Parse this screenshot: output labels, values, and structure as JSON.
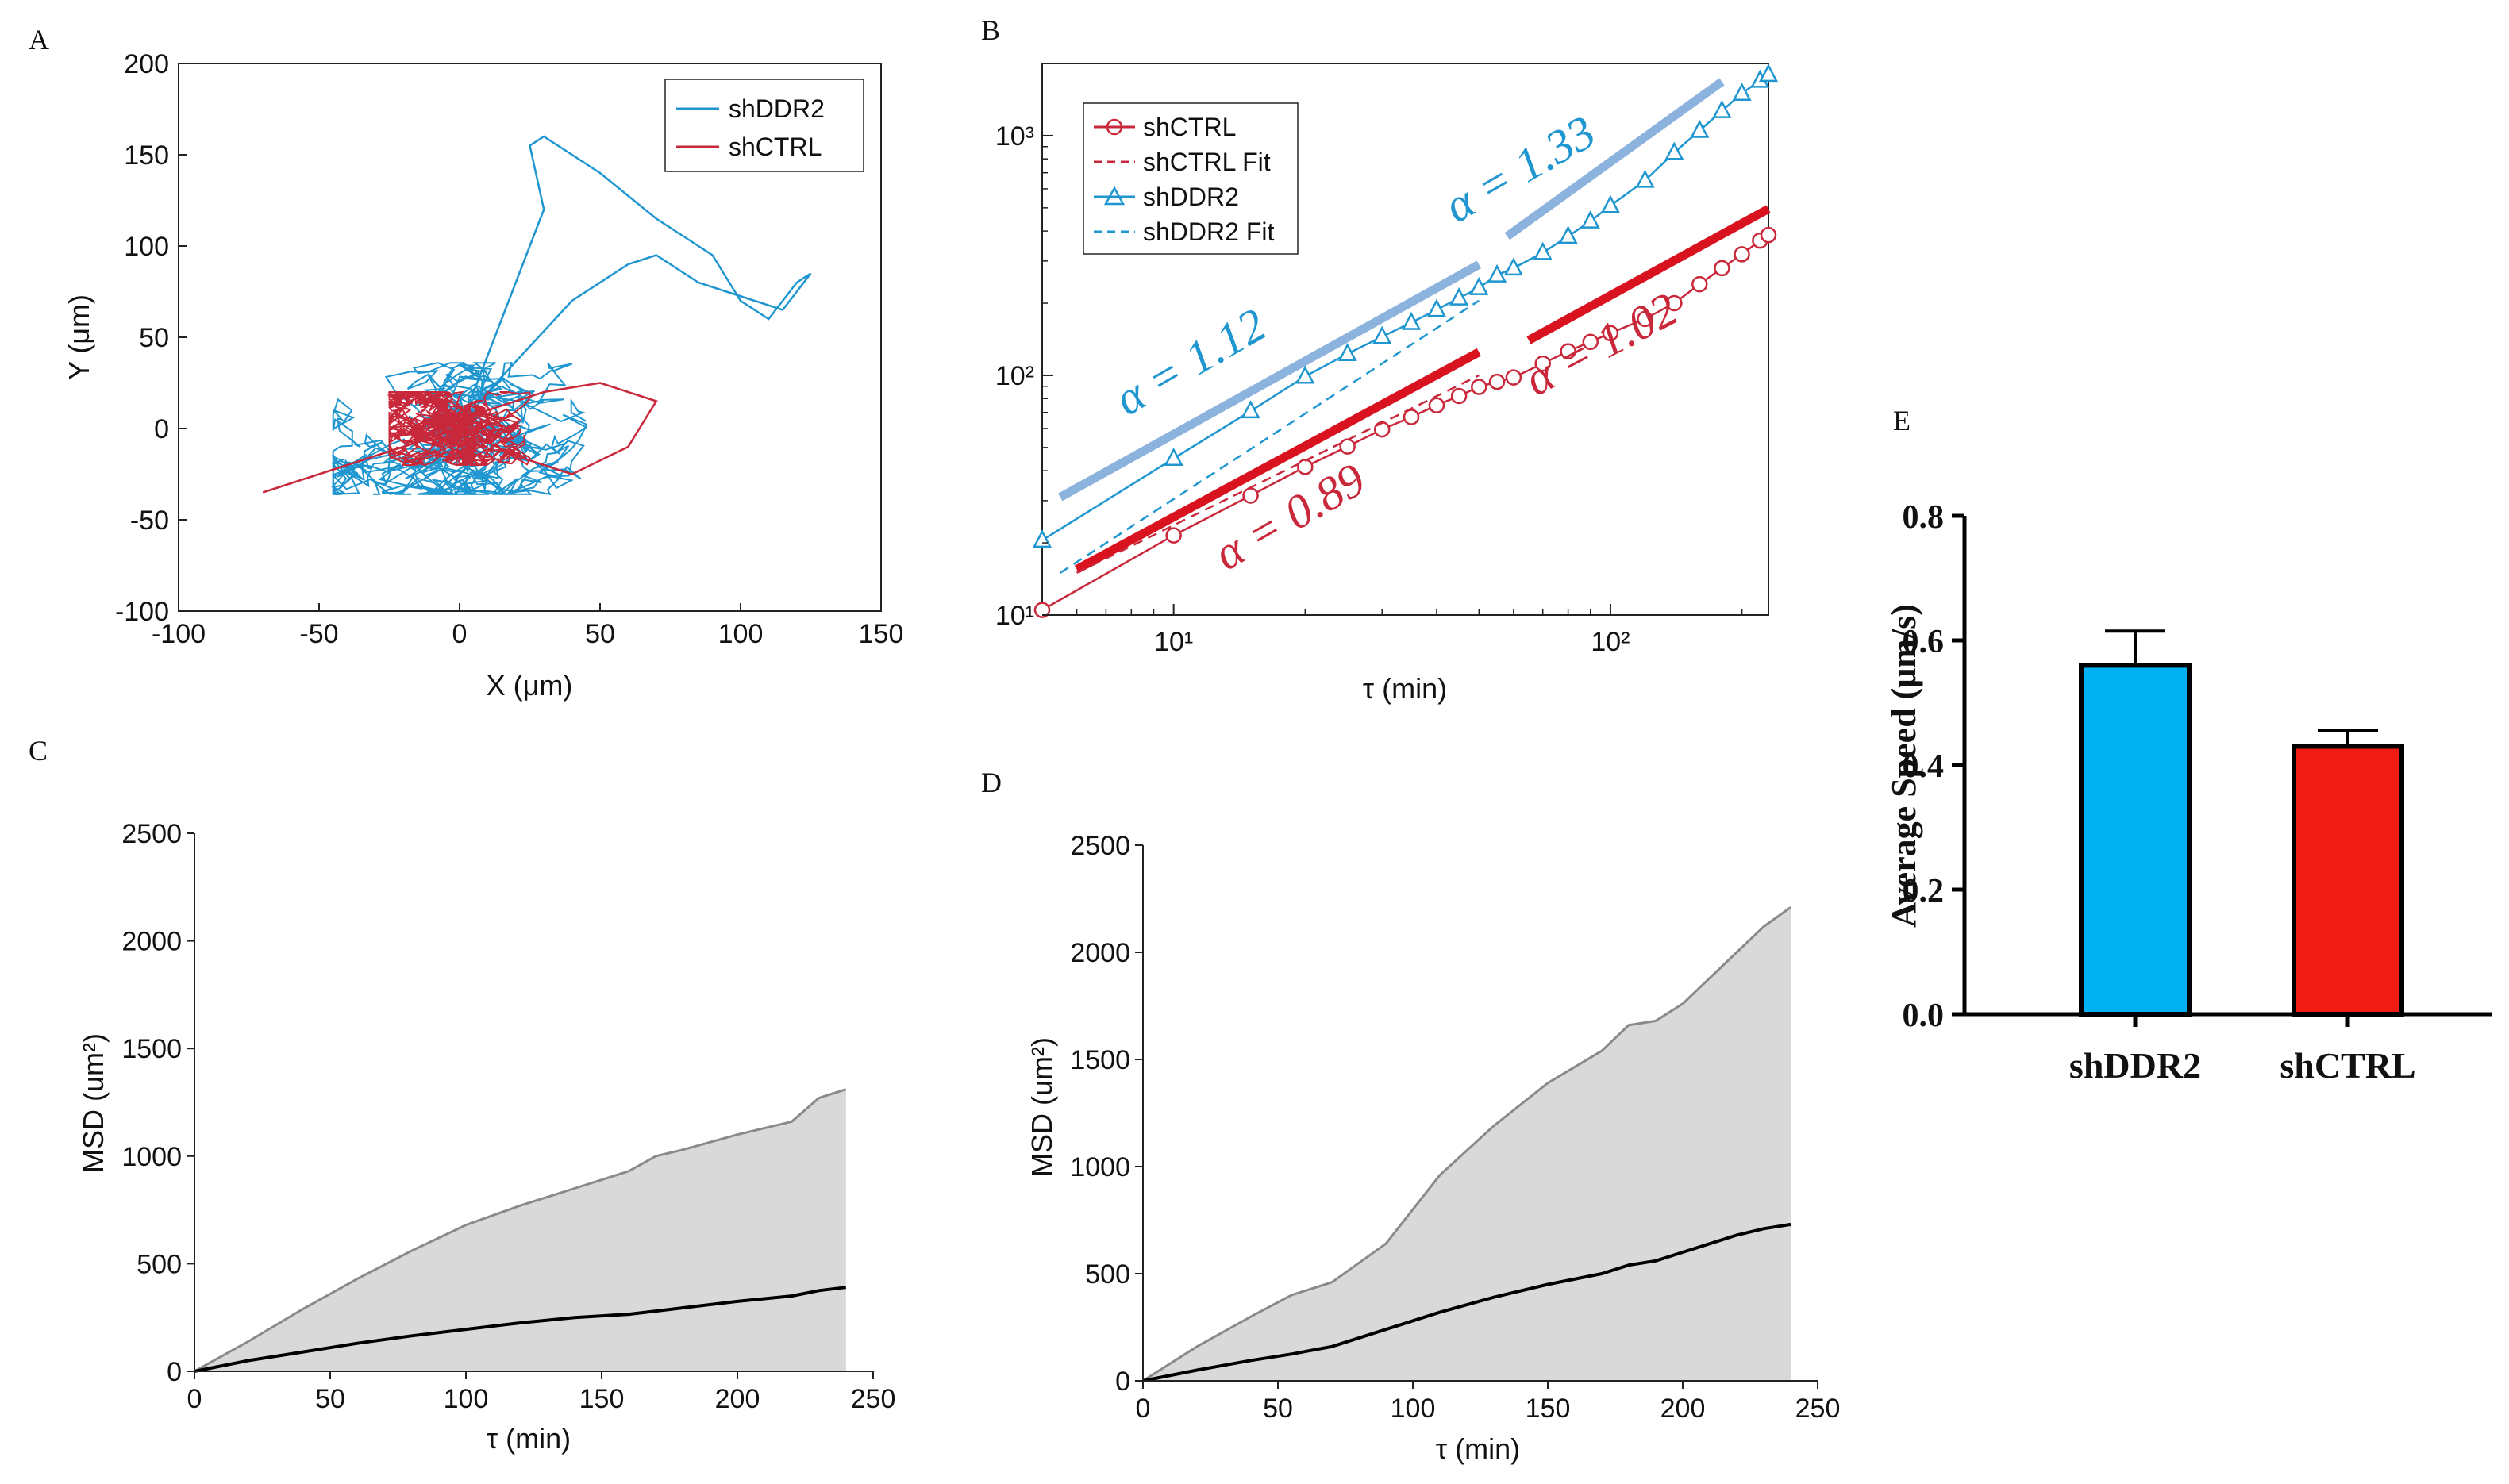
{
  "colors": {
    "shDDR2": "#1f96d0",
    "shCTRL": "#c9283a",
    "fitDDR2": "#8cb2de",
    "fitCTRL": "#d9121f",
    "barDDR2": "#00b0f0",
    "barCTRL": "#f01c14",
    "shade": "#d9d9d9"
  },
  "panels": {
    "A": {
      "letter": "A"
    },
    "B": {
      "letter": "B"
    },
    "C": {
      "letter": "C"
    },
    "D": {
      "letter": "D"
    },
    "E": {
      "letter": "E"
    }
  },
  "chart_data": [
    {
      "id": "A",
      "type": "line",
      "title": "",
      "xlabel": "X (μm)",
      "ylabel": "Y (μm)",
      "xlim": [
        -100,
        150
      ],
      "ylim": [
        -100,
        200
      ],
      "xticks": [
        "-100",
        "-50",
        "0",
        "50",
        "100",
        "150"
      ],
      "yticks": [
        "-100",
        "-50",
        "0",
        "50",
        "100",
        "150",
        "200"
      ],
      "legend": [
        "shDDR2",
        "shCTRL"
      ],
      "series": [
        {
          "name": "shDDR2",
          "note": "cell trajectories, representative long track",
          "x": [
            0,
            10,
            25,
            40,
            60,
            70,
            85,
            95,
            105,
            115,
            125,
            120,
            110,
            100,
            90,
            70,
            50,
            30,
            25,
            30,
            15,
            0
          ],
          "y": [
            0,
            20,
            45,
            70,
            90,
            95,
            80,
            75,
            70,
            65,
            85,
            80,
            60,
            70,
            95,
            115,
            140,
            160,
            155,
            120,
            60,
            0
          ]
        },
        {
          "name": "shCTRL",
          "note": "cell trajectories, representative spread",
          "x": [
            0,
            -20,
            -40,
            -60,
            -70,
            -50,
            -30,
            -10,
            10,
            30,
            50,
            70,
            60,
            40,
            20,
            0
          ],
          "y": [
            0,
            -10,
            -20,
            -30,
            -35,
            -25,
            -15,
            -5,
            10,
            20,
            25,
            15,
            -10,
            -25,
            -15,
            0
          ]
        }
      ]
    },
    {
      "id": "B",
      "type": "line",
      "scale": "loglog",
      "xlabel": "τ (min)",
      "ylabel": "",
      "xlim": [
        5,
        230
      ],
      "ylim": [
        10,
        2000
      ],
      "xticks": [
        "10¹",
        "10²"
      ],
      "yticks": [
        "10¹",
        "10²",
        "10³"
      ],
      "legend": [
        "shCTRL",
        "shCTRL Fit",
        "shDDR2",
        "shDDR2 Fit"
      ],
      "series": [
        {
          "name": "shCTRL",
          "marker": "circle",
          "x": [
            5,
            10,
            15,
            20,
            25,
            30,
            35,
            40,
            45,
            50,
            55,
            60,
            70,
            80,
            90,
            100,
            120,
            140,
            160,
            180,
            200,
            220,
            230
          ],
          "y": [
            10.5,
            21.5,
            31.5,
            41.5,
            50.5,
            59.5,
            67,
            75,
            82,
            89.5,
            94,
            98,
            112,
            126,
            138,
            150,
            172,
            200,
            240,
            280,
            320,
            365,
            385
          ]
        },
        {
          "name": "shDDR2",
          "marker": "triangle",
          "x": [
            5,
            10,
            15,
            20,
            25,
            30,
            35,
            40,
            45,
            50,
            55,
            60,
            70,
            80,
            90,
            100,
            120,
            140,
            160,
            180,
            200,
            220,
            230
          ],
          "y": [
            20.5,
            45,
            71,
            99,
            123,
            145,
            166,
            188,
            210,
            232,
            262,
            280,
            325,
            380,
            440,
            510,
            650,
            850,
            1050,
            1270,
            1500,
            1700,
            1800
          ]
        },
        {
          "name": "shCTRL Fit",
          "style": "dashed",
          "x": [
            6,
            50
          ],
          "y": [
            15,
            100
          ]
        },
        {
          "name": "shDDR2 Fit",
          "style": "dashed",
          "x": [
            5.5,
            50
          ],
          "y": [
            15,
            205
          ]
        }
      ],
      "annotations": [
        {
          "text": "α = 1.12",
          "color": "#1f96d0"
        },
        {
          "text": "α = 1.33",
          "color": "#1f96d0"
        },
        {
          "text": "α = 0.89",
          "color": "#c9283a"
        },
        {
          "text": "α = 1.02",
          "color": "#c9283a"
        }
      ],
      "guide_lines": [
        {
          "name": "alpha-1.12-line",
          "x": [
            5.5,
            50
          ],
          "y": [
            31,
            290
          ]
        },
        {
          "name": "alpha-1.33-line",
          "x": [
            58,
            180
          ],
          "y": [
            380,
            1680
          ]
        },
        {
          "name": "alpha-0.89-line",
          "x": [
            6,
            50
          ],
          "y": [
            15.5,
            125
          ]
        },
        {
          "name": "alpha-1.02-line",
          "x": [
            65,
            230
          ],
          "y": [
            140,
            495
          ]
        }
      ]
    },
    {
      "id": "C",
      "type": "area",
      "xlabel": "τ (min)",
      "ylabel": "MSD (um²)",
      "xlim": [
        0,
        250
      ],
      "ylim": [
        0,
        2500
      ],
      "xticks": [
        "0",
        "50",
        "100",
        "150",
        "200",
        "250"
      ],
      "yticks": [
        "0",
        "500",
        "1000",
        "1500",
        "2000",
        "2500"
      ],
      "x": [
        0,
        20,
        40,
        60,
        80,
        100,
        120,
        140,
        160,
        170,
        180,
        200,
        220,
        230,
        240
      ],
      "upper": [
        0,
        140,
        290,
        430,
        560,
        680,
        770,
        850,
        930,
        1000,
        1030,
        1100,
        1160,
        1270,
        1310
      ],
      "mean": [
        0,
        50,
        90,
        130,
        165,
        195,
        225,
        250,
        265,
        280,
        295,
        325,
        350,
        375,
        390
      ]
    },
    {
      "id": "D",
      "type": "area",
      "xlabel": "τ (min)",
      "ylabel": "MSD (um²)",
      "xlim": [
        0,
        250
      ],
      "ylim": [
        0,
        2500
      ],
      "xticks": [
        "0",
        "50",
        "100",
        "150",
        "200",
        "250"
      ],
      "yticks": [
        "0",
        "500",
        "1000",
        "1500",
        "2000",
        "2500"
      ],
      "x": [
        0,
        20,
        40,
        55,
        70,
        90,
        110,
        130,
        150,
        170,
        180,
        190,
        200,
        210,
        220,
        230,
        240
      ],
      "upper": [
        0,
        160,
        300,
        400,
        460,
        640,
        960,
        1190,
        1390,
        1540,
        1660,
        1680,
        1760,
        1880,
        2000,
        2120,
        2210
      ],
      "mean": [
        0,
        50,
        95,
        125,
        160,
        240,
        320,
        390,
        450,
        500,
        540,
        560,
        600,
        640,
        680,
        710,
        730
      ]
    },
    {
      "id": "E",
      "type": "bar",
      "xlabel": "",
      "ylabel": "Average Speed (μm/s)",
      "ylim": [
        0,
        0.8
      ],
      "yticks": [
        "0.0",
        "0.2",
        "0.4",
        "0.6",
        "0.8"
      ],
      "categories": [
        "shDDR2",
        "shCTRL"
      ],
      "values": [
        0.56,
        0.43
      ],
      "errors": [
        0.055,
        0.025
      ]
    }
  ]
}
